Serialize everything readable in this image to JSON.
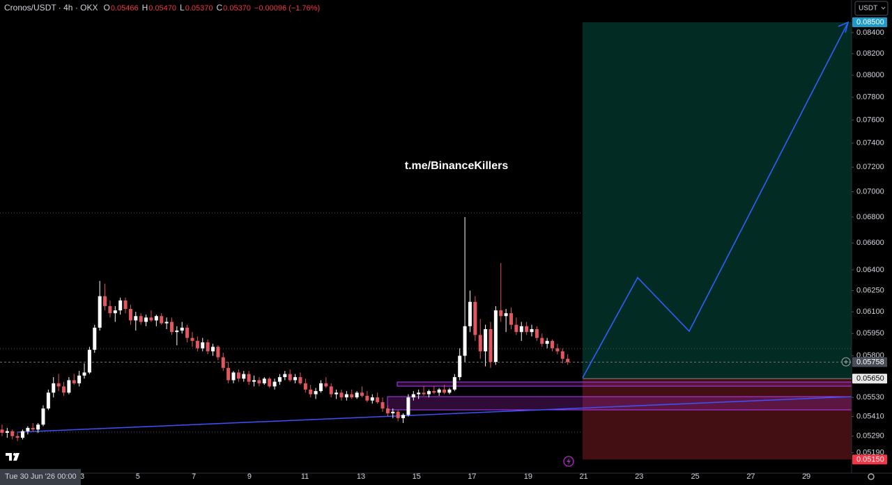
{
  "chart_data": {
    "type": "candlestick",
    "title": "Cronos/USDT · 4h · OKX",
    "ohlc": [
      {
        "key": "O",
        "value": "0.05466"
      },
      {
        "key": "H",
        "value": "0.05470"
      },
      {
        "key": "L",
        "value": "0.05370"
      },
      {
        "key": "C",
        "value": "0.05370"
      }
    ],
    "change": "−0.00096 (−1.76%)",
    "currency": "USDT",
    "watermark": "t.me/BinanceKillers",
    "crosshair_time": "Tue 30 Jun '26 00:00",
    "log_scale": true,
    "up_color": "#ffffff",
    "down_color": "#e0575f",
    "x": [
      0,
      1,
      2,
      3,
      4,
      5,
      6,
      7,
      8,
      9,
      10,
      11,
      12,
      13,
      14,
      15,
      16,
      17,
      18,
      19,
      20,
      21,
      22,
      23,
      24,
      25,
      26,
      27,
      28,
      29,
      30,
      31,
      32,
      33,
      34,
      35,
      36,
      37,
      38,
      39,
      40,
      41,
      42,
      43,
      44,
      45,
      46,
      47,
      48,
      49,
      50,
      51,
      52,
      53,
      54,
      55,
      56,
      57,
      58,
      59,
      60,
      61,
      62,
      63,
      64,
      65,
      66,
      67,
      68,
      69,
      70,
      71,
      72,
      73,
      74,
      75,
      76,
      77,
      78,
      79,
      80,
      81,
      82,
      83,
      84,
      85,
      86,
      87,
      88,
      89,
      90,
      91,
      92,
      93,
      94,
      95,
      96,
      97,
      98,
      99,
      100,
      101,
      102,
      103,
      104,
      105,
      106,
      107,
      108,
      109,
      110
    ],
    "open": [
      0.0533,
      0.0531,
      0.0532,
      0.0529,
      0.0528,
      0.0532,
      0.0534,
      0.0533,
      0.0536,
      0.0546,
      0.0556,
      0.0562,
      0.056,
      0.0556,
      0.0564,
      0.0562,
      0.0567,
      0.0569,
      0.0584,
      0.0599,
      0.0621,
      0.0614,
      0.0609,
      0.0611,
      0.0618,
      0.0612,
      0.0604,
      0.0607,
      0.0603,
      0.0606,
      0.0604,
      0.0607,
      0.0602,
      0.0603,
      0.0596,
      0.0597,
      0.0599,
      0.0592,
      0.059,
      0.0585,
      0.0589,
      0.0583,
      0.0586,
      0.0579,
      0.0572,
      0.0564,
      0.0569,
      0.0565,
      0.0568,
      0.0563,
      0.0564,
      0.0562,
      0.0565,
      0.056,
      0.0563,
      0.0566,
      0.0568,
      0.0564,
      0.0566,
      0.0562,
      0.0558,
      0.0555,
      0.0557,
      0.0562,
      0.056,
      0.0555,
      0.0556,
      0.0553,
      0.0555,
      0.0553,
      0.0556,
      0.0554,
      0.0551,
      0.0553,
      0.055,
      0.0546,
      0.0543,
      0.0544,
      0.054,
      0.0542,
      0.0553,
      0.0555,
      0.0556,
      0.0555,
      0.0557,
      0.0556,
      0.0558,
      0.0556,
      0.0558,
      0.0566,
      0.058,
      0.06,
      0.0617,
      0.0594,
      0.0583,
      0.0598,
      0.0576,
      0.0611,
      0.0607,
      0.0609,
      0.0601,
      0.0596,
      0.06,
      0.0596,
      0.0598,
      0.0592,
      0.0588,
      0.059,
      0.0585,
      0.0583,
      0.0578
    ],
    "high": [
      0.0536,
      0.0534,
      0.0533,
      0.0531,
      0.0533,
      0.0535,
      0.0537,
      0.0537,
      0.0548,
      0.0558,
      0.0566,
      0.0568,
      0.0563,
      0.0566,
      0.0568,
      0.057,
      0.0575,
      0.0586,
      0.0601,
      0.0632,
      0.063,
      0.0618,
      0.0614,
      0.062,
      0.062,
      0.0615,
      0.061,
      0.0609,
      0.0608,
      0.0611,
      0.0608,
      0.0609,
      0.0606,
      0.0606,
      0.06,
      0.0603,
      0.0601,
      0.0596,
      0.0593,
      0.0592,
      0.0591,
      0.0588,
      0.0587,
      0.0582,
      0.0576,
      0.057,
      0.0571,
      0.057,
      0.057,
      0.0567,
      0.0566,
      0.0566,
      0.0566,
      0.0565,
      0.0568,
      0.057,
      0.0571,
      0.0568,
      0.0569,
      0.0565,
      0.0561,
      0.0559,
      0.0564,
      0.0566,
      0.0562,
      0.0558,
      0.0558,
      0.0557,
      0.0558,
      0.0557,
      0.056,
      0.0557,
      0.0555,
      0.0556,
      0.0553,
      0.0548,
      0.0546,
      0.0545,
      0.0543,
      0.0555,
      0.0557,
      0.0558,
      0.056,
      0.0558,
      0.056,
      0.0559,
      0.0561,
      0.0559,
      0.0568,
      0.0585,
      0.068,
      0.0625,
      0.0621,
      0.0605,
      0.0601,
      0.0603,
      0.0614,
      0.0645,
      0.0612,
      0.0613,
      0.0606,
      0.0603,
      0.0603,
      0.0601,
      0.06,
      0.0595,
      0.0592,
      0.0591,
      0.0588,
      0.0585,
      0.0581
    ],
    "low": [
      0.0529,
      0.0528,
      0.0527,
      0.0526,
      0.0527,
      0.053,
      0.0532,
      0.0531,
      0.0535,
      0.0545,
      0.0553,
      0.0557,
      0.0554,
      0.0555,
      0.0561,
      0.056,
      0.0565,
      0.0568,
      0.0582,
      0.0597,
      0.0611,
      0.0606,
      0.0603,
      0.0608,
      0.0609,
      0.0601,
      0.0597,
      0.0601,
      0.06,
      0.0603,
      0.06,
      0.0601,
      0.0598,
      0.0594,
      0.0587,
      0.0595,
      0.0589,
      0.0586,
      0.0583,
      0.0583,
      0.0581,
      0.058,
      0.0577,
      0.057,
      0.0562,
      0.0562,
      0.0563,
      0.0563,
      0.0561,
      0.056,
      0.056,
      0.0561,
      0.0559,
      0.0558,
      0.0561,
      0.0564,
      0.0563,
      0.0562,
      0.0561,
      0.0556,
      0.0553,
      0.0552,
      0.0556,
      0.0559,
      0.0553,
      0.0552,
      0.0551,
      0.0551,
      0.0552,
      0.0552,
      0.0553,
      0.055,
      0.0549,
      0.0549,
      0.0544,
      0.0541,
      0.054,
      0.0538,
      0.0537,
      0.0541,
      0.0551,
      0.0552,
      0.0554,
      0.0553,
      0.0555,
      0.0554,
      0.0555,
      0.0555,
      0.0557,
      0.0564,
      0.0576,
      0.0596,
      0.059,
      0.0578,
      0.0573,
      0.0572,
      0.0574,
      0.0603,
      0.0596,
      0.0598,
      0.0594,
      0.059,
      0.0594,
      0.0593,
      0.059,
      0.0586,
      0.0585,
      0.0583,
      0.0581,
      0.0575,
      0.0574
    ],
    "close": [
      0.0531,
      0.0532,
      0.0529,
      0.0528,
      0.0532,
      0.0534,
      0.0533,
      0.0536,
      0.0546,
      0.0556,
      0.0562,
      0.056,
      0.0556,
      0.0564,
      0.0562,
      0.0567,
      0.0569,
      0.0584,
      0.0599,
      0.0621,
      0.0614,
      0.0609,
      0.0611,
      0.0618,
      0.0612,
      0.0604,
      0.0607,
      0.0603,
      0.0606,
      0.0604,
      0.0607,
      0.0602,
      0.0603,
      0.0596,
      0.0597,
      0.0599,
      0.0592,
      0.059,
      0.0585,
      0.0589,
      0.0583,
      0.0586,
      0.0579,
      0.0572,
      0.0564,
      0.0569,
      0.0565,
      0.0568,
      0.0563,
      0.0564,
      0.0562,
      0.0565,
      0.056,
      0.0563,
      0.0566,
      0.0568,
      0.0564,
      0.0566,
      0.0562,
      0.0558,
      0.0555,
      0.0557,
      0.0562,
      0.056,
      0.0555,
      0.0556,
      0.0553,
      0.0555,
      0.0553,
      0.0556,
      0.0554,
      0.0551,
      0.0553,
      0.055,
      0.0546,
      0.0543,
      0.0544,
      0.054,
      0.0542,
      0.0553,
      0.0555,
      0.0556,
      0.0555,
      0.0557,
      0.0556,
      0.0558,
      0.0556,
      0.0558,
      0.0566,
      0.058,
      0.06,
      0.0617,
      0.0594,
      0.0583,
      0.0598,
      0.0576,
      0.0611,
      0.0607,
      0.0609,
      0.0601,
      0.0596,
      0.06,
      0.0596,
      0.0598,
      0.0592,
      0.0588,
      0.059,
      0.0585,
      0.0583,
      0.0578,
      0.05758
    ],
    "xlim": [
      -0.4,
      165.2
    ],
    "xticks": [
      {
        "value": 15.6,
        "label": "3"
      },
      {
        "value": 26.4,
        "label": "5"
      },
      {
        "value": 37.3,
        "label": "7"
      },
      {
        "value": 48.1,
        "label": "9"
      },
      {
        "value": 58.9,
        "label": "11"
      },
      {
        "value": 69.8,
        "label": "13"
      },
      {
        "value": 80.6,
        "label": "15"
      },
      {
        "value": 91.4,
        "label": "17"
      },
      {
        "value": 102.3,
        "label": "19"
      },
      {
        "value": 113.1,
        "label": "21"
      },
      {
        "value": 123.9,
        "label": "23"
      },
      {
        "value": 134.8,
        "label": "25"
      },
      {
        "value": 145.6,
        "label": "27"
      },
      {
        "value": 156.4,
        "label": "29"
      }
    ],
    "ylim": [
      0.0507,
      0.0872
    ],
    "yticks": [
      {
        "value": 0.084,
        "label": "0.08400"
      },
      {
        "value": 0.082,
        "label": "0.08200"
      },
      {
        "value": 0.08,
        "label": "0.08000"
      },
      {
        "value": 0.078,
        "label": "0.07800"
      },
      {
        "value": 0.076,
        "label": "0.07600"
      },
      {
        "value": 0.074,
        "label": "0.07400"
      },
      {
        "value": 0.072,
        "label": "0.07200"
      },
      {
        "value": 0.07,
        "label": "0.07000"
      },
      {
        "value": 0.068,
        "label": "0.06800"
      },
      {
        "value": 0.066,
        "label": "0.06600"
      },
      {
        "value": 0.064,
        "label": "0.06400"
      },
      {
        "value": 0.0625,
        "label": "0.06250"
      },
      {
        "value": 0.061,
        "label": "0.06100"
      },
      {
        "value": 0.0595,
        "label": "0.05950"
      },
      {
        "value": 0.058,
        "label": "0.05800"
      },
      {
        "value": 0.0553,
        "label": "0.05530"
      },
      {
        "value": 0.0541,
        "label": "0.05410"
      },
      {
        "value": 0.0529,
        "label": "0.05290"
      },
      {
        "value": 0.0519,
        "label": "0.05190"
      }
    ],
    "grid": false,
    "target": {
      "value": 0.085,
      "label": "0.08500"
    },
    "last_price": {
      "value": 0.05758,
      "label": "0.05758"
    },
    "entry": {
      "value": 0.0565,
      "label": "0.05650"
    },
    "stop": {
      "value": 0.0515,
      "label": "0.05150"
    }
  }
}
